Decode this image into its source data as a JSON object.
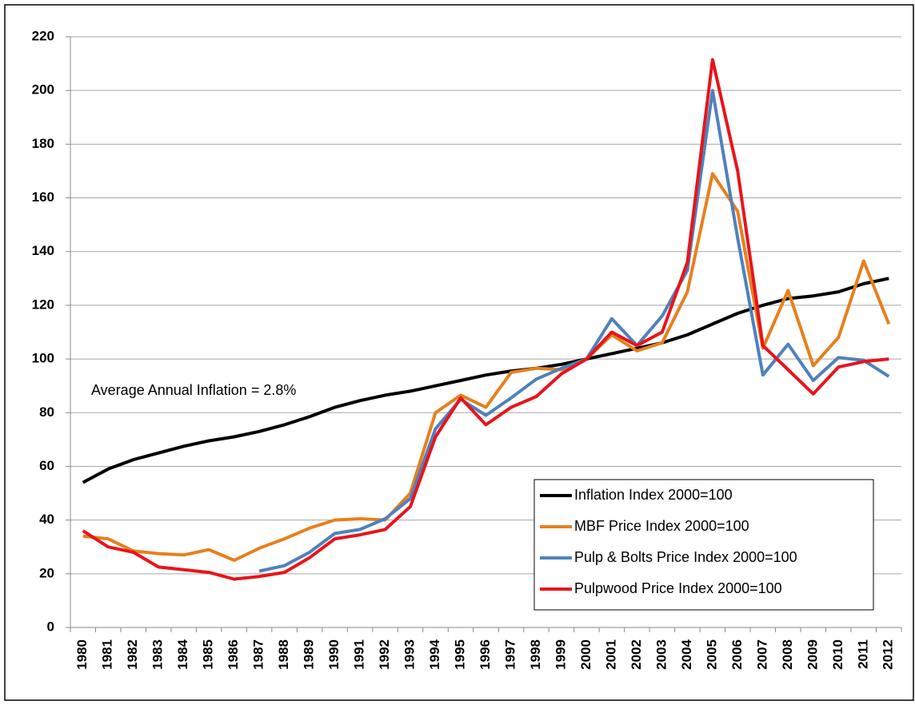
{
  "chart_data": {
    "type": "line",
    "annotation": "Average Annual Inflation = 2.8%",
    "categories": [
      "1980",
      "1981",
      "1982",
      "1983",
      "1984",
      "1985",
      "1986",
      "1987",
      "1988",
      "1989",
      "1990",
      "1991",
      "1992",
      "1993",
      "1994",
      "1995",
      "1996",
      "1997",
      "1998",
      "1999",
      "2000",
      "2001",
      "2002",
      "2003",
      "2004",
      "2005",
      "2006",
      "2007",
      "2008",
      "2009",
      "2010",
      "2011",
      "2012"
    ],
    "series": [
      {
        "name": "Inflation Index 2000=100",
        "color": "#000000",
        "values": [
          54,
          59,
          62.5,
          65,
          67.5,
          69.5,
          71,
          73,
          75.5,
          78.5,
          82,
          84.5,
          86.5,
          88,
          90,
          92,
          94,
          95.5,
          96.5,
          98,
          100,
          102,
          104,
          106,
          109,
          113,
          117,
          120,
          122.5,
          123.5,
          125,
          128,
          130
        ]
      },
      {
        "name": "MBF Price Index 2000=100",
        "color": "#e6801e",
        "values": [
          34,
          33,
          28.5,
          27.5,
          27,
          29,
          25,
          29.5,
          33,
          37,
          40,
          40.5,
          40,
          50,
          80,
          86.5,
          82,
          95,
          96.5,
          96,
          100,
          109,
          103,
          106,
          125,
          169,
          155,
          104,
          125.5,
          97.5,
          108,
          136.5,
          113
        ]
      },
      {
        "name": "Pulp & Bolts Price Index 2000=100",
        "color": "#4f81bd",
        "values": [
          null,
          null,
          null,
          null,
          null,
          null,
          null,
          21,
          23,
          28,
          35,
          36.5,
          40.5,
          48,
          74,
          85,
          79,
          85.5,
          92.5,
          96.5,
          100,
          115,
          105,
          116,
          133,
          200,
          145,
          94,
          105.5,
          92,
          100.5,
          99.5,
          93.5
        ]
      },
      {
        "name": "Pulpwood Price Index 2000=100",
        "color": "#e8141b",
        "values": [
          36,
          30,
          28,
          22.5,
          21.5,
          20.5,
          18,
          19,
          20.5,
          26,
          33,
          34.5,
          36.5,
          45,
          71,
          85.5,
          75.5,
          82,
          86,
          94.5,
          100,
          110,
          105,
          110,
          136,
          211.5,
          170,
          105,
          96,
          87,
          97,
          99,
          100
        ]
      }
    ],
    "ylim": [
      0,
      220
    ],
    "yticks": [
      0,
      20,
      40,
      60,
      80,
      100,
      120,
      140,
      160,
      180,
      200,
      220
    ],
    "grid": true,
    "legend": "lower right"
  }
}
